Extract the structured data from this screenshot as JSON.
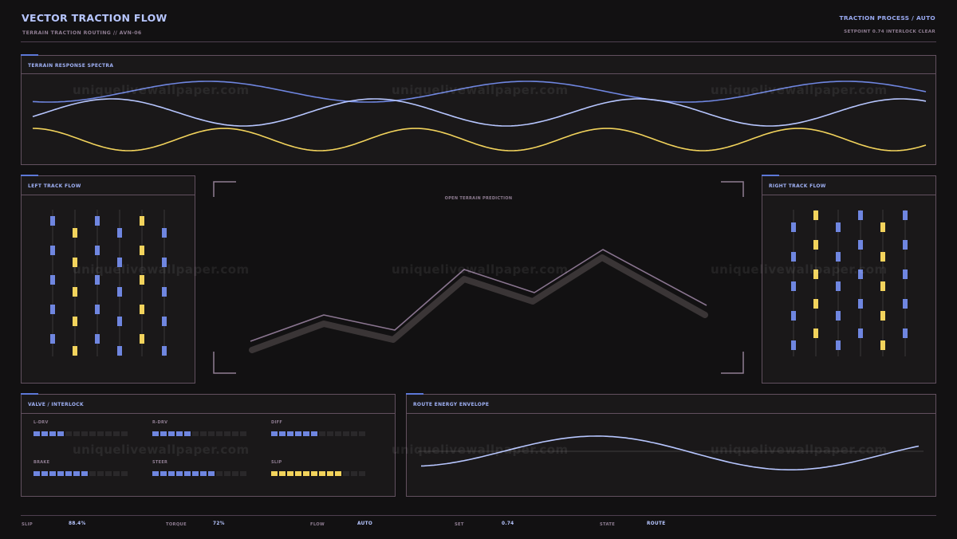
{
  "header": {
    "title": "VECTOR TRACTION FLOW",
    "subtitle": "TERRAIN TRACTION ROUTING  //  AVN-06",
    "mode": "TRACTION PROCESS / AUTO",
    "setpoint": "SETPOINT 0.74  INTERLOCK CLEAR"
  },
  "panels": {
    "spectra_title": "TERRAIN RESPONSE SPECTRA",
    "left_title": "LEFT TRACK FLOW",
    "right_title": "RIGHT TRACK FLOW",
    "center_title": "OPEN TERRAIN PREDICTION",
    "valve_title": "VALVE / INTERLOCK",
    "route_title": "ROUTE ENERGY ENVELOPE"
  },
  "meters": [
    {
      "label": "L-DRV",
      "level": 0.33,
      "color": "#6f86e0"
    },
    {
      "label": "R-DRV",
      "level": 0.42,
      "color": "#6f86e0"
    },
    {
      "label": "DIFF",
      "level": 0.5,
      "color": "#6f86e0"
    },
    {
      "label": "BRAKE",
      "level": 0.58,
      "color": "#6f86e0"
    },
    {
      "label": "STEER",
      "level": 0.67,
      "color": "#6f86e0"
    },
    {
      "label": "SLIP",
      "level": 0.75,
      "color": "#f2d35c"
    }
  ],
  "footer": [
    {
      "label": "SLIP",
      "value": "88.4%"
    },
    {
      "label": "TORQUE",
      "value": "72%"
    },
    {
      "label": "FLOW",
      "value": "AUTO"
    },
    {
      "label": "SET",
      "value": "0.74"
    },
    {
      "label": "STATE",
      "value": "ROUTE"
    }
  ],
  "watermark": "uniquelivewallpaper.com",
  "colors": {
    "accent_blue": "#6f86e0",
    "light_blue": "#b7c6ff",
    "yellow": "#f2d35c",
    "mauve": "#8f7d92"
  }
}
